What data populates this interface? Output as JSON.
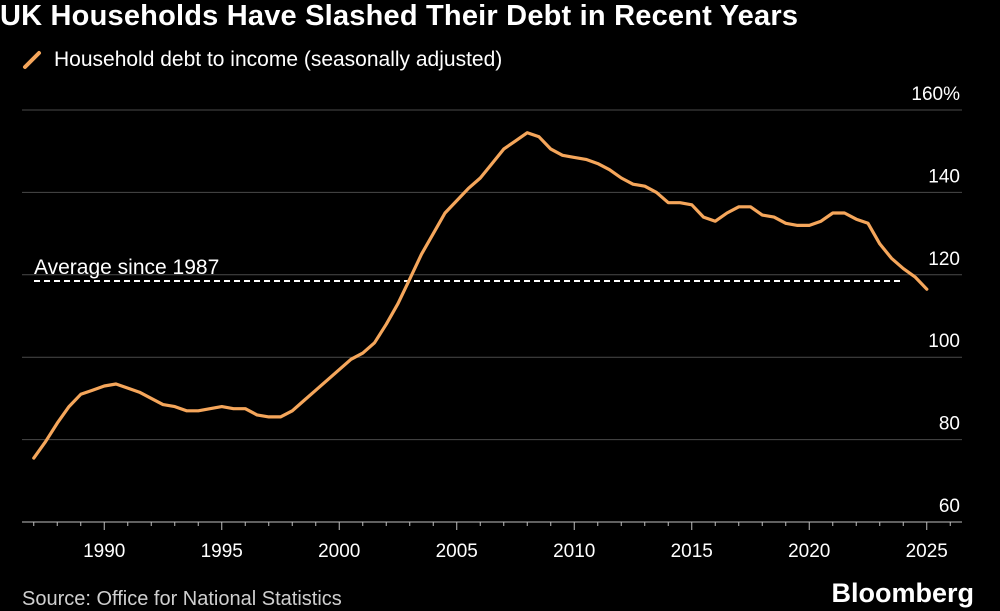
{
  "title": "UK Households Have Slashed Their Debt in Recent Years",
  "source": "Source: Office for National Statistics",
  "brand": "Bloomberg",
  "colors": {
    "line": "#f5a65b",
    "grid": "#4a4a4a",
    "average": "#ffffff",
    "background": "#000000"
  },
  "chart_data": {
    "type": "line",
    "title": "UK Households Have Slashed Their Debt in Recent Years",
    "xlabel": "",
    "ylabel": "",
    "xlim": [
      1986.5,
      2026.5
    ],
    "ylim": [
      60,
      160
    ],
    "y_ticks": [
      60,
      80,
      100,
      120,
      140,
      160
    ],
    "y_tick_labels": [
      "60",
      "80",
      "100",
      "120",
      "140",
      "160%"
    ],
    "x_ticks": [
      1990,
      1995,
      2000,
      2005,
      2010,
      2015,
      2020,
      2025
    ],
    "x_tick_labels": [
      "1990",
      "1995",
      "2000",
      "2005",
      "2010",
      "2015",
      "2020",
      "2025"
    ],
    "legend": {
      "position": "top-left",
      "label": "Household debt to income (seasonally adjusted)"
    },
    "annotation": {
      "label": "Average since 1987",
      "value": 118.5
    },
    "series": [
      {
        "name": "Household debt to income (seasonally adjusted)",
        "x": [
          1987.0,
          1987.5,
          1988.0,
          1988.5,
          1989.0,
          1989.5,
          1990.0,
          1990.5,
          1991.0,
          1991.5,
          1992.0,
          1992.5,
          1993.0,
          1993.5,
          1994.0,
          1994.5,
          1995.0,
          1995.5,
          1996.0,
          1996.5,
          1997.0,
          1997.5,
          1998.0,
          1998.5,
          1999.0,
          1999.5,
          2000.0,
          2000.5,
          2001.0,
          2001.5,
          2002.0,
          2002.5,
          2003.0,
          2003.5,
          2004.0,
          2004.5,
          2005.0,
          2005.5,
          2006.0,
          2006.5,
          2007.0,
          2007.5,
          2008.0,
          2008.5,
          2009.0,
          2009.5,
          2010.0,
          2010.5,
          2011.0,
          2011.5,
          2012.0,
          2012.5,
          2013.0,
          2013.5,
          2014.0,
          2014.5,
          2015.0,
          2015.5,
          2016.0,
          2016.5,
          2017.0,
          2017.5,
          2018.0,
          2018.5,
          2019.0,
          2019.5,
          2020.0,
          2020.5,
          2021.0,
          2021.5,
          2022.0,
          2022.5,
          2023.0,
          2023.5,
          2024.0,
          2024.5,
          2025.0
        ],
        "values": [
          75.5,
          79.5,
          84.0,
          88.0,
          91.0,
          92.0,
          93.0,
          93.5,
          92.5,
          91.5,
          90.0,
          88.5,
          88.0,
          87.0,
          87.0,
          87.5,
          88.0,
          87.5,
          87.5,
          86.0,
          85.5,
          85.5,
          87.0,
          89.5,
          92.0,
          94.5,
          97.0,
          99.5,
          101.0,
          103.5,
          108.0,
          113.0,
          119.0,
          125.0,
          130.0,
          135.0,
          138.0,
          141.0,
          143.5,
          147.0,
          150.5,
          152.5,
          154.5,
          153.5,
          150.5,
          149.0,
          148.5,
          148.0,
          147.0,
          145.5,
          143.5,
          142.0,
          141.5,
          140.0,
          137.5,
          137.5,
          137.0,
          134.0,
          133.0,
          135.0,
          136.5,
          136.5,
          134.5,
          134.0,
          132.5,
          132.0,
          132.0,
          133.0,
          135.0,
          135.0,
          133.5,
          132.5,
          127.5,
          124.0,
          121.5,
          119.5,
          116.5
        ]
      }
    ]
  }
}
